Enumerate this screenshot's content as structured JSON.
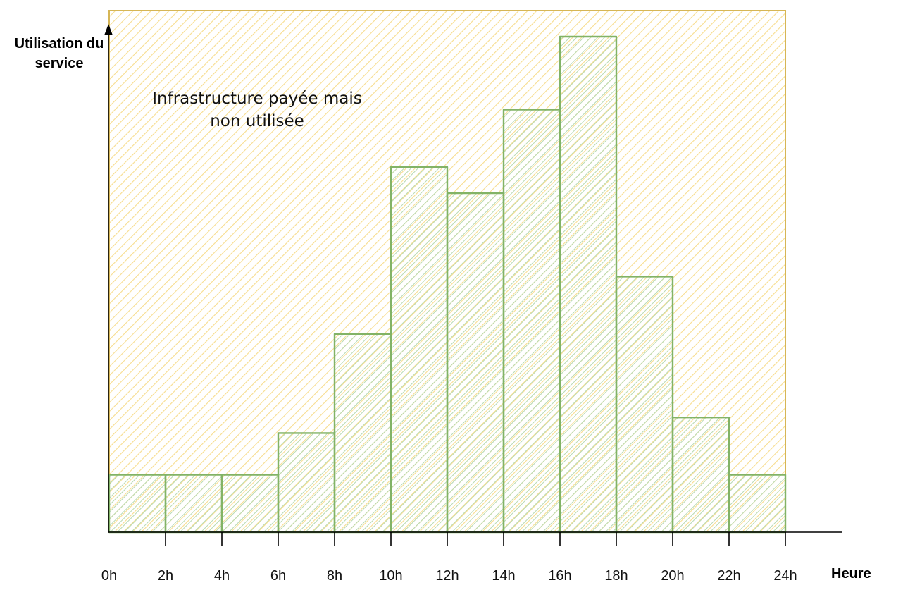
{
  "chart_data": {
    "type": "bar",
    "title": "",
    "xlabel": "Heure",
    "ylabel": "Utilisation du service",
    "x_ticks": [
      "0h",
      "2h",
      "4h",
      "6h",
      "8h",
      "10h",
      "12h",
      "14h",
      "16h",
      "18h",
      "20h",
      "22h",
      "24h"
    ],
    "bins": [
      [
        0,
        2
      ],
      [
        2,
        4
      ],
      [
        4,
        6
      ],
      [
        6,
        8
      ],
      [
        8,
        10
      ],
      [
        10,
        12
      ],
      [
        12,
        14
      ],
      [
        14,
        16
      ],
      [
        16,
        18
      ],
      [
        18,
        20
      ],
      [
        20,
        22
      ],
      [
        22,
        24
      ]
    ],
    "values": [
      11,
      11,
      11,
      19,
      38,
      70,
      65,
      81,
      95,
      49,
      22,
      11
    ],
    "xlim": [
      0,
      24
    ],
    "ylim": [
      0,
      100
    ],
    "provisioned_capacity": 100,
    "annotation": "Infrastructure payée mais non utilisée",
    "colors": {
      "capacity_fill": "#fff2cc",
      "capacity_stroke": "#d6b656",
      "bar_fill": "#d5e8d4",
      "bar_stroke": "#82b366"
    }
  }
}
